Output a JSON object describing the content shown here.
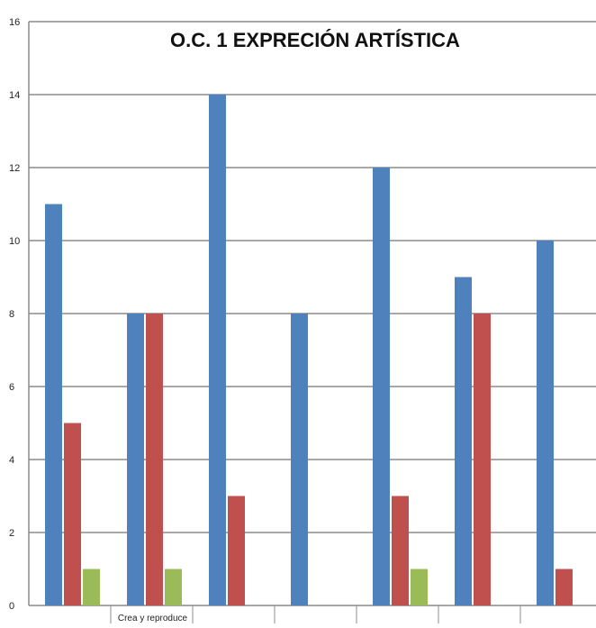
{
  "chart_data": {
    "type": "bar",
    "title": "O.C. 1 EXPRECIÓN ARTÍSTICA",
    "xlabel": "",
    "ylabel": "",
    "ylim": [
      0,
      16
    ],
    "yticks": [
      0,
      2,
      4,
      6,
      8,
      10,
      12,
      14,
      16
    ],
    "grid": true,
    "legend": "none",
    "categories": [
      "",
      "Crea y reproduce",
      "",
      "",
      "",
      "",
      ""
    ],
    "series": [
      {
        "color": "#4F81BD",
        "values": [
          11,
          8,
          14,
          8,
          12,
          9,
          10
        ]
      },
      {
        "color": "#C0504D",
        "values": [
          5,
          8,
          3,
          0,
          3,
          8,
          1
        ]
      },
      {
        "color": "#9BBB59",
        "values": [
          1,
          1,
          0,
          0,
          1,
          0,
          0
        ]
      }
    ]
  }
}
